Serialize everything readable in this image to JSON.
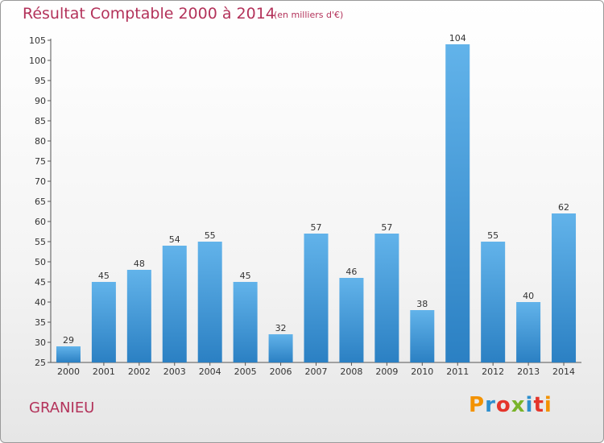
{
  "title": "Résultat Comptable 2000 à 2014",
  "subtitle": "(en milliers d'€)",
  "commune": "GRANIEU",
  "logo": {
    "text": "Proxiti",
    "colors": [
      "#f39200",
      "#2e8fce",
      "#e4352b",
      "#79b32a",
      "#2e8fce",
      "#e4352b",
      "#f39200"
    ]
  },
  "colors": {
    "bar_top": "#62b3ea",
    "bar_bottom": "#2b80c3",
    "title": "#b3325a"
  },
  "chart_data": {
    "type": "bar",
    "title": "Résultat Comptable 2000 à 2014",
    "subtitle": "(en milliers d'€)",
    "categories": [
      "2000",
      "2001",
      "2002",
      "2003",
      "2004",
      "2005",
      "2006",
      "2007",
      "2008",
      "2009",
      "2010",
      "2011",
      "2012",
      "2013",
      "2014"
    ],
    "values": [
      29,
      45,
      48,
      54,
      55,
      45,
      32,
      57,
      46,
      57,
      38,
      104,
      55,
      40,
      62
    ],
    "ylim": [
      25,
      105
    ],
    "yticks": [
      25,
      30,
      35,
      40,
      45,
      50,
      55,
      60,
      65,
      70,
      75,
      80,
      85,
      90,
      95,
      100,
      105
    ],
    "grid": false,
    "data_labels": true
  }
}
